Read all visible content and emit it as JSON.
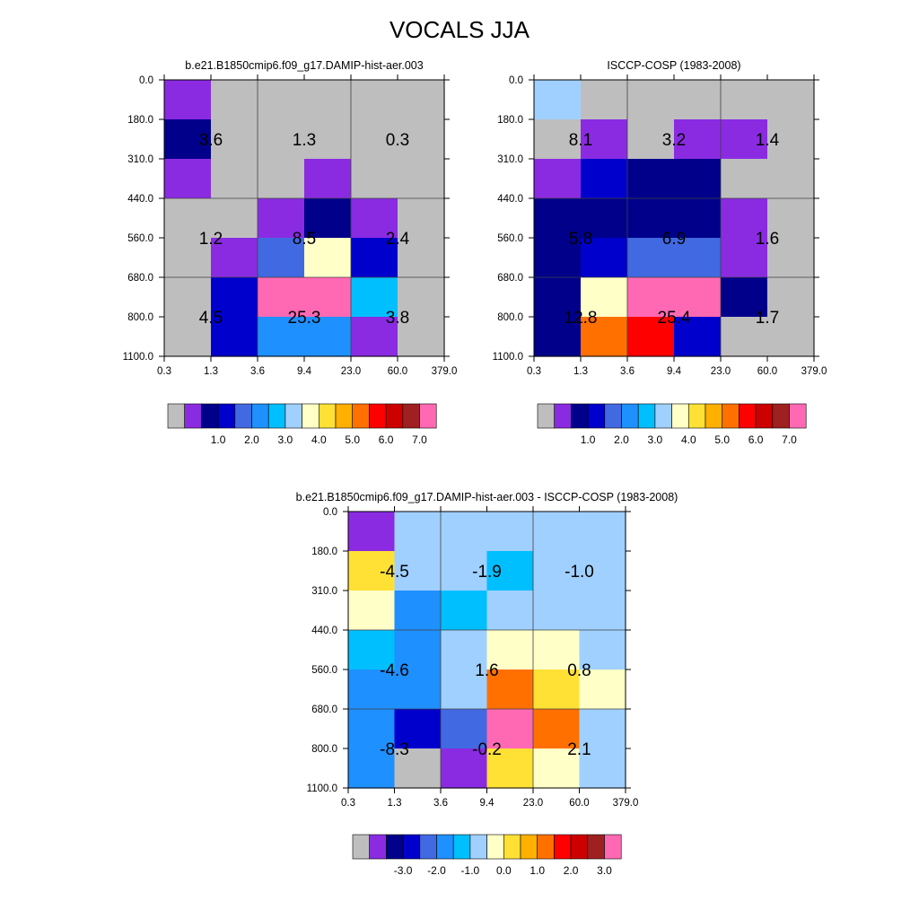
{
  "figure": {
    "title": "VOCALS JJA"
  },
  "chart_data": [
    {
      "type": "heatmap",
      "title": "b.e21.B1850cmip6.f09_g17.DAMIP-hist-aer.003",
      "x_ticks": [
        "0.3",
        "1.3",
        "3.6",
        "9.4",
        "23.0",
        "60.0",
        "379.0"
      ],
      "y_ticks": [
        "0.0",
        "180.0",
        "310.0",
        "440.0",
        "560.0",
        "680.0",
        "800.0",
        "1100.0"
      ],
      "cell_colors": [
        [
          "#8a2be2",
          "#bebebe",
          "#bebebe",
          "#bebebe",
          "#bebebe",
          "#bebebe"
        ],
        [
          "#00008b",
          "#bebebe",
          "#bebebe",
          "#bebebe",
          "#bebebe",
          "#bebebe"
        ],
        [
          "#8a2be2",
          "#bebebe",
          "#bebebe",
          "#8a2be2",
          "#bebebe",
          "#bebebe"
        ],
        [
          "#bebebe",
          "#bebebe",
          "#8a2be2",
          "#00008b",
          "#8a2be2",
          "#bebebe"
        ],
        [
          "#bebebe",
          "#8a2be2",
          "#4169e1",
          "#ffffc8",
          "#0000cd",
          "#bebebe"
        ],
        [
          "#bebebe",
          "#0000cd",
          "#ff69b4",
          "#ff69b4",
          "#00bfff",
          "#bebebe"
        ],
        [
          "#bebebe",
          "#0000cd",
          "#1e90ff",
          "#1e90ff",
          "#8a2be2",
          "#bebebe"
        ]
      ],
      "block_values": [
        [
          "3.6",
          "1.3",
          "0.3"
        ],
        [
          "1.2",
          "8.5",
          "2.4"
        ],
        [
          "4.5",
          "25.3",
          "3.8"
        ]
      ],
      "colorbar": {
        "colors": [
          "#bebebe",
          "#8a2be2",
          "#00008b",
          "#0000cd",
          "#4169e1",
          "#1e90ff",
          "#00bfff",
          "#a0d0ff",
          "#ffffc8",
          "#ffe135",
          "#ffb000",
          "#ff7000",
          "#ff0000",
          "#cd0000",
          "#9e2020",
          "#ff69b4"
        ],
        "labels": [
          "1.0",
          "2.0",
          "3.0",
          "4.0",
          "5.0",
          "6.0",
          "7.0"
        ]
      }
    },
    {
      "type": "heatmap",
      "title": "ISCCP-COSP (1983-2008)",
      "x_ticks": [
        "0.3",
        "1.3",
        "3.6",
        "9.4",
        "23.0",
        "60.0",
        "379.0"
      ],
      "y_ticks": [
        "0.0",
        "180.0",
        "310.0",
        "440.0",
        "560.0",
        "680.0",
        "800.0",
        "1100.0"
      ],
      "cell_colors": [
        [
          "#a0d0ff",
          "#bebebe",
          "#bebebe",
          "#bebebe",
          "#bebebe",
          "#bebebe"
        ],
        [
          "#bebebe",
          "#8a2be2",
          "#bebebe",
          "#8a2be2",
          "#8a2be2",
          "#bebebe"
        ],
        [
          "#8a2be2",
          "#0000cd",
          "#00008b",
          "#00008b",
          "#bebebe",
          "#bebebe"
        ],
        [
          "#00008b",
          "#00008b",
          "#00008b",
          "#00008b",
          "#8a2be2",
          "#bebebe"
        ],
        [
          "#00008b",
          "#0000cd",
          "#4169e1",
          "#4169e1",
          "#8a2be2",
          "#bebebe"
        ],
        [
          "#00008b",
          "#ffffc8",
          "#ff69b4",
          "#ff69b4",
          "#00008b",
          "#bebebe"
        ],
        [
          "#00008b",
          "#ff7000",
          "#ff0000",
          "#0000cd",
          "#bebebe",
          "#bebebe"
        ]
      ],
      "block_values": [
        [
          "8.1",
          "3.2",
          "1.4"
        ],
        [
          "5.8",
          "6.9",
          "1.6"
        ],
        [
          "12.8",
          "25.4",
          "1.7"
        ]
      ],
      "colorbar": {
        "colors": [
          "#bebebe",
          "#8a2be2",
          "#00008b",
          "#0000cd",
          "#4169e1",
          "#1e90ff",
          "#00bfff",
          "#a0d0ff",
          "#ffffc8",
          "#ffe135",
          "#ffb000",
          "#ff7000",
          "#ff0000",
          "#cd0000",
          "#9e2020",
          "#ff69b4"
        ],
        "labels": [
          "1.0",
          "2.0",
          "3.0",
          "4.0",
          "5.0",
          "6.0",
          "7.0"
        ]
      }
    },
    {
      "type": "heatmap",
      "title": "b.e21.B1850cmip6.f09_g17.DAMIP-hist-aer.003 - ISCCP-COSP (1983-2008)",
      "x_ticks": [
        "0.3",
        "1.3",
        "3.6",
        "9.4",
        "23.0",
        "60.0",
        "379.0"
      ],
      "y_ticks": [
        "0.0",
        "180.0",
        "310.0",
        "440.0",
        "560.0",
        "680.0",
        "800.0",
        "1100.0"
      ],
      "cell_colors": [
        [
          "#8a2be2",
          "#a0d0ff",
          "#a0d0ff",
          "#a0d0ff",
          "#a0d0ff",
          "#a0d0ff"
        ],
        [
          "#ffe135",
          "#a0d0ff",
          "#a0d0ff",
          "#00bfff",
          "#a0d0ff",
          "#a0d0ff"
        ],
        [
          "#ffffc8",
          "#1e90ff",
          "#00bfff",
          "#a0d0ff",
          "#a0d0ff",
          "#a0d0ff"
        ],
        [
          "#00bfff",
          "#1e90ff",
          "#a0d0ff",
          "#ffffc8",
          "#ffffc8",
          "#a0d0ff"
        ],
        [
          "#1e90ff",
          "#1e90ff",
          "#a0d0ff",
          "#ff7000",
          "#ffe135",
          "#ffffc8"
        ],
        [
          "#1e90ff",
          "#0000cd",
          "#4169e1",
          "#ff69b4",
          "#ff7000",
          "#a0d0ff"
        ],
        [
          "#1e90ff",
          "#bebebe",
          "#8a2be2",
          "#ffe135",
          "#ffffc8",
          "#a0d0ff"
        ]
      ],
      "block_values": [
        [
          "-4.5",
          "-1.9",
          "-1.0"
        ],
        [
          "-4.6",
          "1.6",
          "0.8"
        ],
        [
          "-8.3",
          "-0.2",
          "2.1"
        ]
      ],
      "colorbar": {
        "colors": [
          "#bebebe",
          "#8a2be2",
          "#00008b",
          "#0000cd",
          "#4169e1",
          "#1e90ff",
          "#00bfff",
          "#a0d0ff",
          "#ffffc8",
          "#ffe135",
          "#ffb000",
          "#ff7000",
          "#ff0000",
          "#cd0000",
          "#9e2020",
          "#ff69b4"
        ],
        "labels": [
          "-3.0",
          "-2.0",
          "-1.0",
          "0.0",
          "1.0",
          "2.0",
          "3.0"
        ]
      }
    }
  ]
}
